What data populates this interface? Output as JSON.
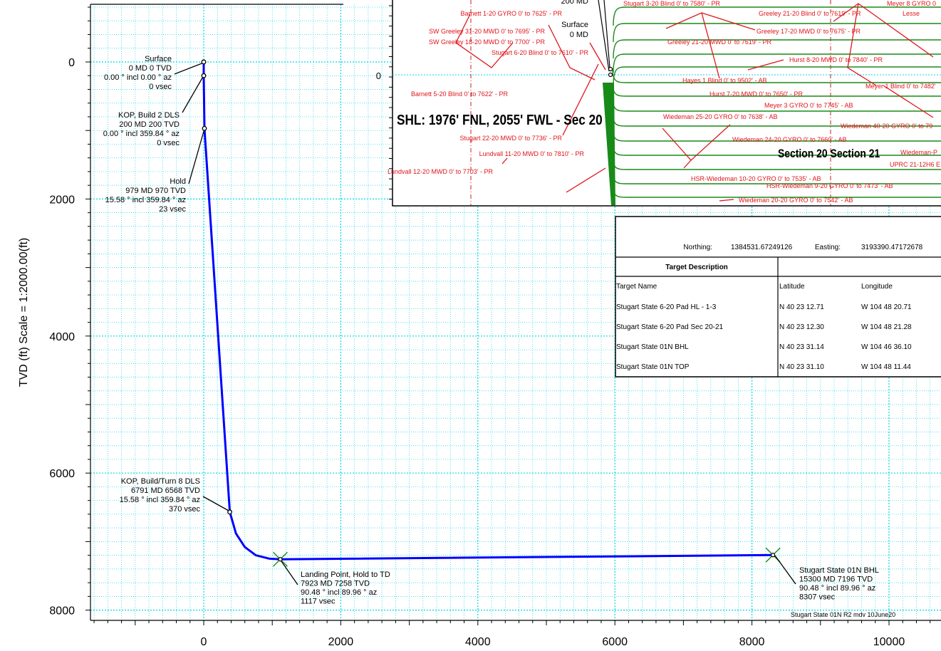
{
  "chart_data": {
    "type": "line",
    "ylabel": "TVD (ft) Scale = 1:2000.00(ft)",
    "xlim": [
      -1650,
      10800
    ],
    "ylim": [
      8370,
      -870
    ],
    "x_ticks": [
      "0",
      "2000",
      "4000",
      "6000",
      "8000",
      "10000"
    ],
    "y_ticks": [
      "0",
      "2000",
      "4000",
      "6000",
      "8000"
    ],
    "grid": true,
    "series": [
      {
        "x": [
          0,
          0,
          10,
          380,
          470,
          600,
          760,
          960,
          1117,
          8307
        ],
        "y": [
          0,
          200,
          970,
          6568,
          6880,
          7080,
          7200,
          7250,
          7258,
          7196
        ]
      }
    ],
    "stations": [
      {
        "x": 0,
        "y": 0,
        "lines": [
          "Surface",
          "0 MD 0 TVD",
          "0.00 ° incl 0.00 ° az",
          "0 vsec"
        ]
      },
      {
        "x": 0,
        "y": 200,
        "lines": [
          "KOP, Build 2 DLS",
          "200 MD 200 TVD",
          "0.00 ° incl 359.84 ° az",
          "0 vsec"
        ]
      },
      {
        "x": 10,
        "y": 970,
        "lines": [
          "Hold",
          "979 MD 970 TVD",
          "15.58 ° incl 359.84 ° az",
          "23 vsec"
        ]
      },
      {
        "x": 380,
        "y": 6568,
        "lines": [
          "KOP, Build/Turn 8 DLS",
          "6791 MD 6568 TVD",
          "15.58 ° incl 359.84 ° az",
          "370 vsec"
        ]
      }
    ],
    "targets": [
      {
        "x": 1117,
        "y": 7258,
        "lines": [
          "Landing Point, Hold to TD",
          "7923 MD 7258 TVD",
          "90.48 ° incl 89.96 ° az",
          "1117 vsec"
        ]
      },
      {
        "x": 8307,
        "y": 7196,
        "lines": [
          "Stugart State 01N BHL",
          "15300 MD 7196 TVD",
          "90.48 ° incl 89.96 ° az",
          "8307 vsec"
        ]
      }
    ],
    "footer_label": "Stugart State 01N R2 mdv 10June20"
  },
  "inset": {
    "tick_zero": "0",
    "shl_label": "SHL: 1976' FNL, 2055' FWL - Sec 20",
    "section_label": "Section 20  Section 21",
    "black_labels": [
      "200 MD",
      "Surface",
      "0 MD"
    ],
    "wells": [
      "Stugart 3-20 Blind 0' to 7580' - PR",
      "Meyer 8 GYRO 0",
      "Barnett 1-20 GYRO 0' to 7625' - PR",
      "Greeley 21-20 Blind 0' to 7619' - PR",
      "Lesse",
      "SW Greeley 31-20 MWD 0' to 7695' - PR",
      "Greeley 17-20 MWD 0' to 7675' - PR",
      "SW Greeley 18-20 MWD 0' to 7700' - PR",
      "Greeley 21-20 MWD 0' to 7619' - PR",
      "Stugart 6-20 Blind 0' to 7610' - PR",
      "Hurst 8-20 MWD 0' to 7840' - PR",
      "Hayes 1 Blind 0' to 9502' - AB",
      "Meyer 1 Blind 0' to 7482'",
      "Barnett 5-20 Blind 0' to 7622' - PR",
      "Hurst 7-20 MWD 0' to 7650' - PR",
      "Meyer 3 GYRO 0' to 7745' - AB",
      "Wiedeman 25-20 GYRO 0' to 7638' - AB",
      "Wiedeman 40-20 GYRO 0' to 79",
      "Stugart 22-20 MWD 0' to 7736' - PR",
      "Wiedeman 24-20 GYRO 0' to 7660' - AB",
      "Lundvall 11-20 MWD 0' to 7810' - PR",
      "Wiedeman-P",
      "UPRC 21-12H6 E",
      "Lundvall 12-20 MWD 0' to 7703' - PR",
      "HSR-Wiedeman 10-20 GYRO 0' to 7535' - AB",
      "HSR-Wiedeman 9-20 GYRO 0' to 7473' - AB",
      "Wiedeman 20-20 GYRO 0' to 7542' - AB"
    ]
  },
  "info_table": {
    "northing_label": "Northing:",
    "northing": "1384531.67249126",
    "easting_label": "Easting:",
    "easting": "3193390.47172678",
    "header": "Target Description",
    "columns": [
      "Target Name",
      "Latitude",
      "Longitude"
    ],
    "rows": [
      [
        "Stugart State 6-20 Pad HL - 1-3",
        "N  40 23  12.71",
        "W 104 48  20.71"
      ],
      [
        "Stugart State 6-20 Pad Sec 20-21",
        "N  40 23  12.30",
        "W 104 48  21.28"
      ],
      [
        "Stugart State 01N BHL",
        "N  40 23  31.14",
        "W 104 46  36.10"
      ],
      [
        "Stugart State 01N TOP",
        "N  40 23  31.10",
        "W 104 48  11.44"
      ]
    ]
  },
  "colors": {
    "well": "#0000ff",
    "grid": "#00d8e8",
    "offset_well": "#e0151b",
    "contour": "#188a18",
    "shl": "#1515c8"
  }
}
